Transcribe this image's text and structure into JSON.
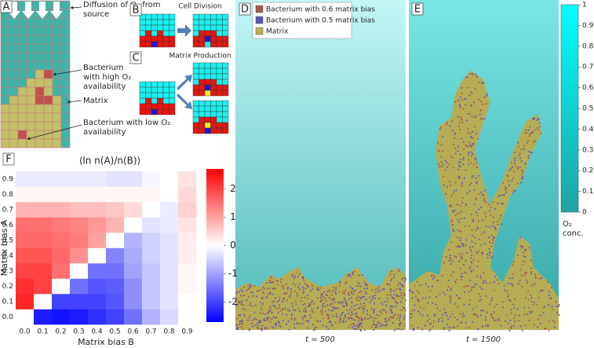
{
  "panel_a": {
    "label": "A",
    "notes": [
      [
        "Diffusion of O₂ from",
        "source"
      ],
      [
        "Bacterium",
        "with high O₂",
        "availability"
      ],
      [
        "Matrix"
      ],
      [
        "Bacterium with low O₂",
        "availability"
      ]
    ]
  },
  "panel_b": {
    "label": "B",
    "title": "Cell Division"
  },
  "panel_c": {
    "label": "C",
    "title": "Matrix Production"
  },
  "panel_d": {
    "label": "D",
    "legend": [
      "Bacterium with 0.6 matrix bias",
      "Bacterium with 0.5 matrix bias",
      "Matrix"
    ],
    "legend_colors": [
      "#a8554c",
      "#5a55b8",
      "#b9b058"
    ],
    "caption": "t = 500"
  },
  "panel_e": {
    "label": "E",
    "caption": "t = 1500",
    "colorbar": {
      "label": [
        "O₂",
        "conc."
      ],
      "lim": [
        0,
        1
      ],
      "ticks": [
        0,
        0.1,
        0.2,
        0.3,
        0.4,
        0.5,
        0.6,
        0.7,
        0.8,
        0.9,
        1
      ],
      "colors": [
        "#1fa3a3",
        "#00ffff"
      ]
    }
  },
  "chart_data": {
    "type": "heatmap",
    "label": "F",
    "title": "⟨ln n(A)/n(B)⟩",
    "x_label": "Matrix bias B",
    "y_label": "Matrix bias A",
    "x_categories": [
      "0.0",
      "0.1",
      "0.2",
      "0.3",
      "0.4",
      "0.5",
      "0.6",
      "0.7",
      "0.8",
      "0.9"
    ],
    "y_categories": [
      "0.0",
      "0.1",
      "0.2",
      "0.3",
      "0.4",
      "0.5",
      "0.6",
      "0.7",
      "0.8",
      "0.9"
    ],
    "values": [
      [
        0,
        -2.4,
        -2.5,
        -2.4,
        -2.2,
        -2.0,
        -1.5,
        -0.8,
        -0.4,
        0
      ],
      [
        2.3,
        0,
        -2.0,
        -2.0,
        -2.0,
        -1.8,
        -1.2,
        -0.6,
        -0.3,
        0
      ],
      [
        2.2,
        2.0,
        0,
        -1.5,
        -1.8,
        -1.7,
        -1.2,
        -0.6,
        -0.3,
        0.1
      ],
      [
        2.0,
        2.0,
        1.5,
        0,
        -1.5,
        -1.5,
        -1.0,
        -0.6,
        -0.3,
        0.1
      ],
      [
        1.8,
        1.8,
        1.6,
        1.2,
        0,
        -1.3,
        -0.9,
        -0.5,
        -0.3,
        0.2
      ],
      [
        1.6,
        1.6,
        1.5,
        1.4,
        1.0,
        0,
        -0.8,
        -0.5,
        -0.3,
        0.2
      ],
      [
        1.5,
        1.5,
        1.4,
        1.3,
        1.1,
        0.8,
        0,
        -0.3,
        -0.2,
        0.3
      ],
      [
        0.8,
        0.8,
        0.8,
        0.7,
        0.7,
        0.6,
        0.4,
        0,
        -0.2,
        0.5
      ],
      [
        0.1,
        0.1,
        0.1,
        0.1,
        0.1,
        0.1,
        0.1,
        0.1,
        0,
        0.4
      ],
      [
        -0.2,
        -0.2,
        -0.2,
        -0.2,
        -0.2,
        -0.3,
        -0.3,
        -0.1,
        0,
        0.3
      ]
    ],
    "zlim": [
      -2.7,
      2.7
    ],
    "zticks": [
      -2,
      -1,
      0,
      1,
      2
    ],
    "colors": [
      "#0000ff",
      "#ffffff",
      "#ff0000"
    ]
  }
}
